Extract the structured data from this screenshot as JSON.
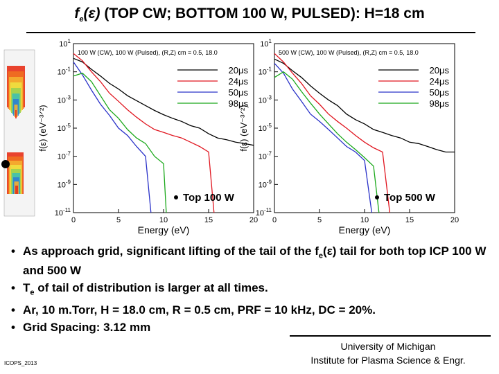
{
  "page": {
    "title_prefix": "f",
    "title_sub": "e",
    "title_eps": "(ε)",
    "title_rest": "(TOP CW; BOTTOM 100 W, PULSED): H=18 cm",
    "bullets": [
      {
        "parts": [
          "As approach grid, significant lifting of the tail of the f",
          "e",
          "(ε) tail for both top ICP 100 W and 500 W"
        ]
      },
      {
        "parts": [
          "T",
          "e",
          " of tail of distribution is larger at all times."
        ]
      },
      {
        "parts": [
          "Ar, 10 m.Torr, H = 18.0 cm, R = 0.5 cm, PRF = 10 kHz, DC = 20%."
        ]
      },
      {
        "parts": [
          "Grid Spacing: 3.12 mm"
        ]
      }
    ],
    "university": "University of Michigan",
    "institute": "Institute for Plasma Science & Engr.",
    "conference": "ICOPS_2013"
  },
  "colors": {
    "t20": "#000000",
    "t24": "#e0141e",
    "t50": "#2830c8",
    "t98": "#1aa81a"
  },
  "chart_data": [
    {
      "type": "line",
      "title": "100 W (CW), 100 W (Pulsed), (R,Z) cm = 0.5, 18.0",
      "xlabel": "Energy (eV)",
      "ylabel": "f(ε) (eV⁻³ᐟ²)",
      "xlim": [
        0,
        20
      ],
      "ylim": [
        1e-11,
        10
      ],
      "yscale": "log",
      "xticks": [
        "0",
        "5",
        "10",
        "15",
        "20"
      ],
      "ytick_exponents": [
        "1",
        "-1",
        "-3",
        "-5",
        "-7",
        "-9",
        "-11"
      ],
      "annotation": "Top 100 W",
      "series": [
        {
          "name": "20μs",
          "color": "#000000",
          "points": [
            [
              0,
              0.9
            ],
            [
              1,
              0.5
            ],
            [
              2,
              0.15
            ],
            [
              3,
              0.05
            ],
            [
              4,
              0.015
            ],
            [
              5,
              0.006
            ],
            [
              6,
              0.002
            ],
            [
              7,
              0.0009
            ],
            [
              8,
              0.0004
            ],
            [
              9,
              0.00018
            ],
            [
              10,
              9e-05
            ],
            [
              11,
              5e-05
            ],
            [
              12,
              3e-05
            ],
            [
              13,
              1.5e-05
            ],
            [
              14,
              1e-05
            ],
            [
              15,
              4e-06
            ],
            [
              16,
              2e-06
            ],
            [
              17,
              1.5e-06
            ],
            [
              18,
              1e-06
            ],
            [
              19,
              8e-07
            ],
            [
              20,
              6e-07
            ]
          ]
        },
        {
          "name": "24μs",
          "color": "#e0141e",
          "points": [
            [
              0,
              2
            ],
            [
              1,
              0.6
            ],
            [
              2,
              0.1
            ],
            [
              3,
              0.02
            ],
            [
              4,
              0.003
            ],
            [
              5,
              0.0008
            ],
            [
              6,
              0.0002
            ],
            [
              7,
              6e-05
            ],
            [
              8,
              2e-05
            ],
            [
              9,
              8e-06
            ],
            [
              10,
              5e-06
            ],
            [
              11,
              3e-06
            ],
            [
              12,
              2e-06
            ],
            [
              13,
              1e-06
            ],
            [
              14,
              5e-07
            ],
            [
              15,
              2e-07
            ],
            [
              15.6,
              1e-11
            ]
          ]
        },
        {
          "name": "50μs",
          "color": "#2830c8",
          "points": [
            [
              0,
              0.5
            ],
            [
              1,
              0.06
            ],
            [
              2,
              0.005
            ],
            [
              3,
              0.0005
            ],
            [
              4,
              8e-05
            ],
            [
              5,
              1e-05
            ],
            [
              6,
              3e-06
            ],
            [
              7,
              5e-07
            ],
            [
              8,
              1e-07
            ],
            [
              8.6,
              1e-11
            ]
          ]
        },
        {
          "name": "98μs",
          "color": "#1aa81a",
          "points": [
            [
              0,
              0.05
            ],
            [
              1,
              0.08
            ],
            [
              2,
              0.02
            ],
            [
              3,
              0.002
            ],
            [
              4,
              0.0002
            ],
            [
              5,
              5e-05
            ],
            [
              6,
              8e-06
            ],
            [
              7,
              2e-06
            ],
            [
              8,
              8e-07
            ],
            [
              9,
              1e-07
            ],
            [
              10,
              3e-08
            ],
            [
              10.3,
              1e-11
            ]
          ]
        }
      ]
    },
    {
      "type": "line",
      "title": "500 W (CW), 100 W (Pulsed), (R,Z) cm = 0.5, 18.0",
      "xlabel": "Energy (eV)",
      "ylabel": "f(ε) (eV⁻³ᐟ²)",
      "xlim": [
        0,
        20
      ],
      "ylim": [
        1e-11,
        10
      ],
      "yscale": "log",
      "xticks": [
        "0",
        "5",
        "10",
        "15",
        "20"
      ],
      "ytick_exponents": [
        "1",
        "-1",
        "-3",
        "-5",
        "-7",
        "-9",
        "-11"
      ],
      "annotation": "Top 500 W",
      "series": [
        {
          "name": "20μs",
          "color": "#000000",
          "points": [
            [
              0,
              0.8
            ],
            [
              1,
              0.4
            ],
            [
              2,
              0.12
            ],
            [
              3,
              0.04
            ],
            [
              4,
              0.01
            ],
            [
              5,
              0.003
            ],
            [
              6,
              0.001
            ],
            [
              7,
              0.0004
            ],
            [
              8,
              0.0001
            ],
            [
              9,
              4e-05
            ],
            [
              10,
              2e-05
            ],
            [
              11,
              8e-06
            ],
            [
              12,
              5e-06
            ],
            [
              13,
              3e-06
            ],
            [
              14,
              2e-06
            ],
            [
              15,
              1e-06
            ],
            [
              16,
              8e-07
            ],
            [
              17,
              5e-07
            ],
            [
              18,
              3e-07
            ],
            [
              19,
              2e-07
            ],
            [
              20,
              2e-07
            ]
          ]
        },
        {
          "name": "24μs",
          "color": "#e0141e",
          "points": [
            [
              0,
              2
            ],
            [
              1,
              0.5
            ],
            [
              2,
              0.08
            ],
            [
              3,
              0.015
            ],
            [
              4,
              0.002
            ],
            [
              5,
              0.0005
            ],
            [
              6,
              0.0001
            ],
            [
              7,
              3e-05
            ],
            [
              8,
              1e-05
            ],
            [
              9,
              3e-06
            ],
            [
              10,
              1e-06
            ],
            [
              11,
              4e-07
            ],
            [
              12,
              2e-07
            ],
            [
              12.8,
              1e-11
            ]
          ]
        },
        {
          "name": "50μs",
          "color": "#2830c8",
          "points": [
            [
              0,
              0.4
            ],
            [
              1,
              0.08
            ],
            [
              2,
              0.006
            ],
            [
              3,
              0.0008
            ],
            [
              4,
              0.0001
            ],
            [
              5,
              3e-05
            ],
            [
              6,
              8e-06
            ],
            [
              7,
              2e-06
            ],
            [
              8,
              5e-07
            ],
            [
              9,
              2e-07
            ],
            [
              10,
              5e-08
            ],
            [
              10.8,
              1e-11
            ]
          ]
        },
        {
          "name": "98μs",
          "color": "#1aa81a",
          "points": [
            [
              0,
              0.04
            ],
            [
              1,
              0.1
            ],
            [
              2,
              0.03
            ],
            [
              3,
              0.004
            ],
            [
              4,
              0.0006
            ],
            [
              5,
              0.0001
            ],
            [
              6,
              2e-05
            ],
            [
              7,
              4e-06
            ],
            [
              8,
              1e-06
            ],
            [
              9,
              3e-07
            ],
            [
              10,
              8e-08
            ],
            [
              11,
              2e-08
            ],
            [
              11.6,
              1e-11
            ]
          ]
        }
      ]
    }
  ]
}
